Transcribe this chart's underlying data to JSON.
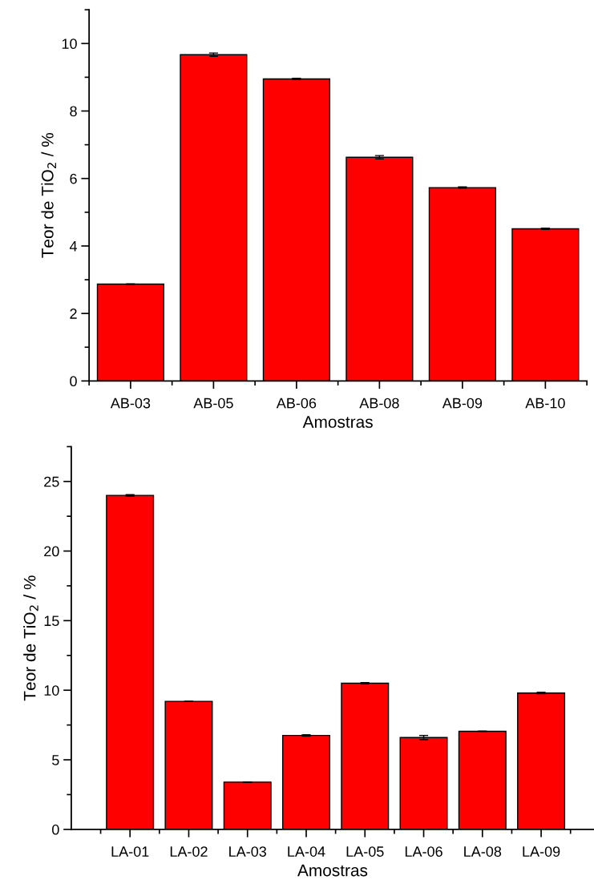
{
  "chart_data": [
    {
      "type": "bar",
      "xlabel": "Amostras",
      "ylabel": "Teor de TiO$_{2}$ / %",
      "categories": [
        "AB-03",
        "AB-05",
        "AB-06",
        "AB-08",
        "AB-09",
        "AB-10"
      ],
      "values": [
        2.87,
        9.67,
        8.95,
        6.63,
        5.73,
        4.51
      ],
      "errors": [
        null,
        0.05,
        0.02,
        0.05,
        0.02,
        0.02
      ],
      "color": "#ff0000",
      "ylim": [
        0,
        11
      ],
      "yticks": [
        0,
        2,
        4,
        6,
        8,
        10
      ],
      "grid": false,
      "legend": false
    },
    {
      "type": "bar",
      "xlabel": "Amostras",
      "ylabel": "Teor de TiO$_{2}$ / %",
      "categories": [
        "LA-01",
        "LA-02",
        "LA-03",
        "LA-04",
        "LA-05",
        "LA-06",
        "LA-08",
        "LA-09"
      ],
      "values": [
        24.0,
        9.2,
        3.4,
        6.75,
        10.5,
        6.6,
        7.05,
        9.8
      ],
      "errors": [
        0.05,
        null,
        null,
        0.05,
        0.05,
        0.15,
        null,
        0.05
      ],
      "color": "#ff0000",
      "ylim": [
        0,
        27.5
      ],
      "yticks": [
        0,
        5,
        10,
        15,
        20,
        25
      ],
      "grid": false,
      "legend": false
    }
  ]
}
